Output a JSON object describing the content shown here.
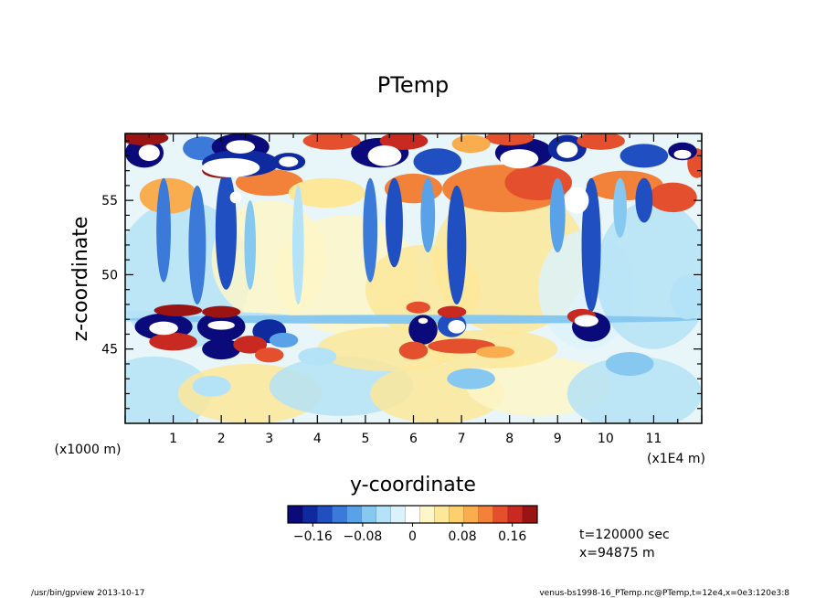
{
  "chart_data": {
    "type": "heatmap",
    "title": "PTemp",
    "xlabel": "y-coordinate",
    "ylabel": "z-coordinate",
    "x_unit_label": "(x1E4 m)",
    "y_unit_label": "(x1000 m)",
    "xlim": [
      0,
      12
    ],
    "ylim": [
      40,
      59.5
    ],
    "x_ticks": [
      "1",
      "2",
      "3",
      "4",
      "5",
      "6",
      "7",
      "8",
      "9",
      "10",
      "11"
    ],
    "y_ticks": [
      "45",
      "50",
      "55"
    ],
    "colorbar": {
      "min": -0.2,
      "max": 0.2,
      "tick_labels": [
        "−0.16",
        "−0.08",
        "0",
        "0.08",
        "0.16"
      ],
      "tick_values": [
        -0.16,
        -0.08,
        0,
        0.08,
        0.16
      ],
      "colors": [
        "#0a0a7a",
        "#0f2a9e",
        "#1f4fc0",
        "#3b7ad8",
        "#5aa2e8",
        "#86c8f0",
        "#b4e2f6",
        "#dcf2fa",
        "#ffffff",
        "#fdf6c8",
        "#fde89a",
        "#fcd06e",
        "#f9ad4e",
        "#f2813a",
        "#e4502d",
        "#c82a22",
        "#9a1414"
      ]
    },
    "annotations": [
      "t=120000 sec",
      "x=94875 m"
    ],
    "grid": false,
    "legend": "colorbar-bottom",
    "features": [
      {
        "label": "top-layer cold cells",
        "z_range": [
          56,
          59.5
        ],
        "value": -0.2
      },
      {
        "label": "downdraft plumes",
        "z_range": [
          49,
          57
        ],
        "value": -0.12
      },
      {
        "label": "warm layer",
        "z_range": [
          53,
          57
        ],
        "value": 0.14
      },
      {
        "label": "lower convective band",
        "z_range": [
          44,
          48
        ],
        "value": -0.18
      },
      {
        "label": "lower warm band",
        "z_range": [
          44,
          46.5
        ],
        "value": 0.18
      }
    ]
  },
  "footer": {
    "left": "/usr/bin/gpview   2013-10-17",
    "right": "venus-bs1998-16_PTemp.nc@PTemp,t=12e4,x=0e3:120e3:8"
  }
}
